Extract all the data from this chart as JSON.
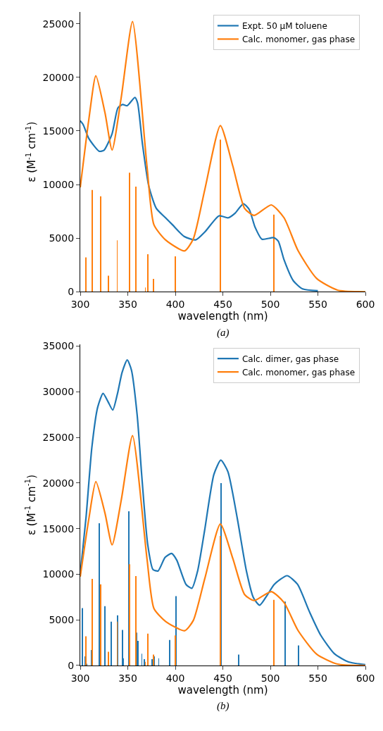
{
  "chart_data": [
    {
      "type": "line",
      "xlabel": "wavelength (nm)",
      "ylabel": "ε (M$^{-1}$ cm$^{-1}$)",
      "xlim": [
        300,
        600
      ],
      "xticks": [
        300,
        350,
        400,
        450,
        500,
        550,
        600
      ],
      "ylim": [
        0,
        26100
      ],
      "yticks": [
        0,
        5000,
        10000,
        15000,
        20000,
        25000
      ],
      "legend": "top right",
      "annotations": [
        "(a)"
      ],
      "series": [
        {
          "name": "Expt. 50 μM toluene",
          "color": "#1f77b4",
          "x": [
            300,
            303,
            309,
            320,
            325,
            333.5,
            339.6,
            344.5,
            349.4,
            357.5,
            360.4,
            365.3,
            372.1,
            380,
            389.7,
            397,
            409.3,
            421.5,
            431.3,
            446,
            455.7,
            463,
            471.6,
            477.8,
            483.9,
            491.2,
            503.4,
            508.3,
            514.4,
            524.2,
            534,
            550
          ],
          "values": [
            15950,
            15600,
            14300,
            13100,
            13200,
            14750,
            17150,
            17470,
            17360,
            18130,
            17580,
            13880,
            9850,
            7780,
            6900,
            6250,
            5160,
            4840,
            5600,
            7080,
            6900,
            7340,
            8210,
            7670,
            6030,
            4900,
            5050,
            4730,
            2980,
            1020,
            260,
            90
          ]
        },
        {
          "name": "Calc. monomer, gas phase",
          "color": "#ff7f0e",
          "x": [
            300,
            309,
            316.4,
            326,
            333.5,
            343.3,
            355,
            370.2,
            377.5,
            389.7,
            409.8,
            419,
            431,
            447.4,
            460.6,
            472.9,
            483,
            501,
            514.4,
            529,
            548.7,
            570.7,
            600
          ],
          "values": [
            9740,
            16060,
            20150,
            16700,
            13220,
            18240,
            25200,
            11700,
            6250,
            4840,
            3810,
            4950,
            9520,
            15500,
            11700,
            7780,
            7120,
            8100,
            6900,
            3860,
            1240,
            150,
            0
          ]
        },
        {
          "type": "bar",
          "color": "#ff7f0e",
          "x": [
            306.1,
            312.7,
            321.3,
            329.3,
            338.9,
            352.1,
            358.4,
            368.5,
            370.9,
            376.8,
            400.2,
            447.4,
            503.9
          ],
          "values": [
            3200,
            9500,
            8900,
            1500,
            4800,
            11100,
            9800,
            400,
            3500,
            1200,
            3300,
            14200,
            7200
          ]
        }
      ]
    },
    {
      "type": "line",
      "xlabel": "wavelength (nm)",
      "ylabel": "ε (M$^{-1}$ cm$^{-1}$)",
      "xlim": [
        300,
        600
      ],
      "xticks": [
        300,
        350,
        400,
        450,
        500,
        550,
        600
      ],
      "ylim": [
        0,
        35200
      ],
      "yticks": [
        0,
        5000,
        10000,
        15000,
        20000,
        25000,
        30000,
        35000
      ],
      "legend": "top right",
      "annotations": [
        "(b)"
      ],
      "series": [
        {
          "name": "Calc. dimer, gas phase",
          "color": "#1f77b4",
          "x": [
            300,
            306.1,
            312.2,
            318.3,
            324,
            329.3,
            334.2,
            339.1,
            344,
            349.4,
            353.8,
            359.9,
            364.8,
            370.9,
            376.5,
            381.9,
            389.2,
            396.1,
            401.5,
            411.2,
            417.4,
            423.5,
            430.8,
            440.6,
            447.9,
            455.3,
            465,
            474.8,
            482.2,
            488.8,
            496.8,
            504.2,
            517.6,
            528.6,
            540.8,
            553,
            567.7,
            582.4,
            600
          ],
          "values": [
            10080,
            16250,
            23900,
            28300,
            29830,
            28900,
            28000,
            29770,
            32120,
            33500,
            32400,
            27420,
            20660,
            13310,
            10520,
            10370,
            11840,
            12280,
            11550,
            8900,
            8460,
            10370,
            14780,
            20950,
            22510,
            21250,
            16250,
            10370,
            7430,
            6610,
            7730,
            8900,
            9840,
            8900,
            5970,
            3320,
            1260,
            380,
            90
          ]
        },
        {
          "name": "Calc. monomer, gas phase",
          "color": "#ff7f0e",
          "x": [
            300,
            309,
            316.4,
            326,
            333.5,
            343.3,
            355,
            370.2,
            377.5,
            389.7,
            409.8,
            419,
            431,
            447.4,
            460.6,
            472.9,
            483,
            501,
            514.4,
            529,
            548.7,
            570.7,
            600
          ],
          "values": [
            9740,
            16060,
            20150,
            16700,
            13220,
            18240,
            25200,
            11700,
            6250,
            4840,
            3810,
            4950,
            9520,
            15500,
            11700,
            7780,
            7120,
            8100,
            6900,
            3860,
            1240,
            150,
            0
          ]
        },
        {
          "type": "bar",
          "color": "#1f77b4",
          "x": [
            302.0,
            305.4,
            306.8,
            311.7,
            320.3,
            325.7,
            332.3,
            339.6,
            344.5,
            345.2,
            351.3,
            359.4,
            360.9,
            364.8,
            367.7,
            375.8,
            378.0,
            382.6,
            394.1,
            400.5,
            447.9,
            466.5,
            515.9,
            529.3
          ],
          "values": [
            6300,
            1000,
            200,
            1700,
            15600,
            6500,
            4800,
            5500,
            3900,
            800,
            16900,
            3600,
            2700,
            1300,
            700,
            700,
            1000,
            800,
            2800,
            7600,
            20000,
            1200,
            7000,
            2200
          ]
        },
        {
          "type": "bar",
          "color": "#ff7f0e",
          "x": [
            306.1,
            312.7,
            321.3,
            329.3,
            338.9,
            352.1,
            358.4,
            368.5,
            370.9,
            376.8,
            400.2,
            447.4,
            503.9
          ],
          "values": [
            3200,
            9500,
            8900,
            1500,
            4800,
            11100,
            9800,
            400,
            3500,
            1200,
            3300,
            14200,
            7200
          ]
        }
      ]
    }
  ]
}
